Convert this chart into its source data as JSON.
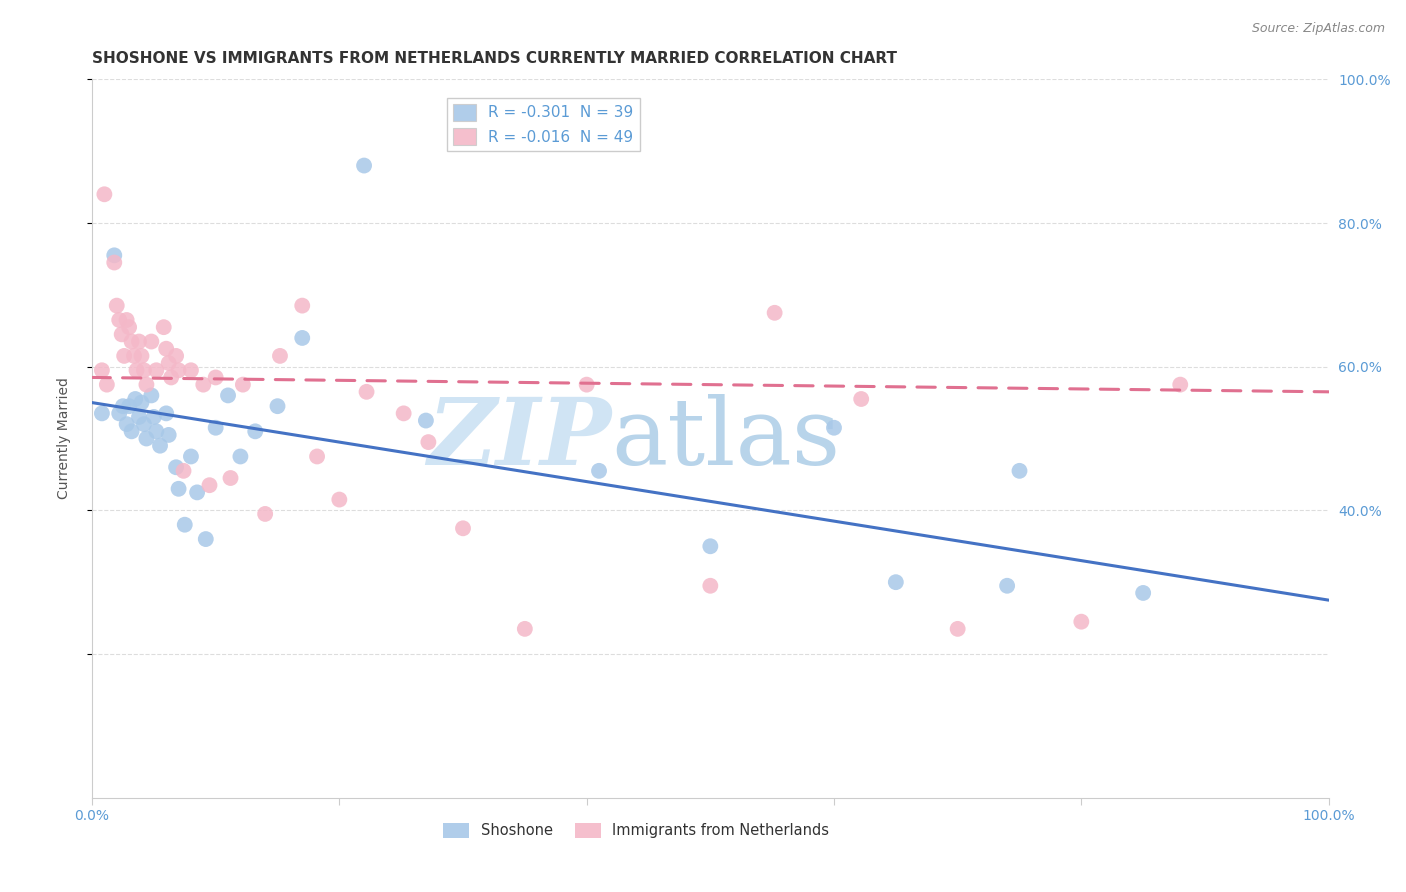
{
  "title": "SHOSHONE VS IMMIGRANTS FROM NETHERLANDS CURRENTLY MARRIED CORRELATION CHART",
  "source": "Source: ZipAtlas.com",
  "ylabel": "Currently Married",
  "xlim": [
    0.0,
    1.0
  ],
  "ylim": [
    0.0,
    1.0
  ],
  "legend_entries": [
    {
      "label_r": "R = ",
      "r_val": "-0.301",
      "label_n": "  N = ",
      "n_val": "39",
      "color": "#a8c8e8"
    },
    {
      "label_r": "R = ",
      "r_val": "-0.016",
      "label_n": "  N = ",
      "n_val": "49",
      "color": "#f4b8c8"
    }
  ],
  "series_blue": {
    "color": "#a8c8e8",
    "line_color": "#4472c4",
    "x": [
      0.008,
      0.018,
      0.022,
      0.025,
      0.028,
      0.03,
      0.032,
      0.035,
      0.038,
      0.04,
      0.042,
      0.044,
      0.048,
      0.05,
      0.052,
      0.055,
      0.06,
      0.062,
      0.068,
      0.07,
      0.075,
      0.08,
      0.085,
      0.092,
      0.1,
      0.11,
      0.12,
      0.132,
      0.15,
      0.17,
      0.22,
      0.27,
      0.41,
      0.5,
      0.6,
      0.65,
      0.74,
      0.75,
      0.85
    ],
    "y": [
      0.535,
      0.755,
      0.535,
      0.545,
      0.52,
      0.545,
      0.51,
      0.555,
      0.53,
      0.55,
      0.52,
      0.5,
      0.56,
      0.53,
      0.51,
      0.49,
      0.535,
      0.505,
      0.46,
      0.43,
      0.38,
      0.475,
      0.425,
      0.36,
      0.515,
      0.56,
      0.475,
      0.51,
      0.545,
      0.64,
      0.88,
      0.525,
      0.455,
      0.35,
      0.515,
      0.3,
      0.295,
      0.455,
      0.285
    ],
    "trendline": {
      "x0": 0.0,
      "y0": 0.55,
      "x1": 1.0,
      "y1": 0.275
    }
  },
  "series_pink": {
    "color": "#f4b8c8",
    "line_color": "#e07090",
    "x": [
      0.008,
      0.01,
      0.012,
      0.018,
      0.02,
      0.022,
      0.024,
      0.026,
      0.028,
      0.03,
      0.032,
      0.034,
      0.036,
      0.038,
      0.04,
      0.042,
      0.044,
      0.048,
      0.052,
      0.058,
      0.06,
      0.062,
      0.064,
      0.068,
      0.07,
      0.074,
      0.08,
      0.09,
      0.095,
      0.1,
      0.112,
      0.122,
      0.14,
      0.152,
      0.17,
      0.182,
      0.2,
      0.222,
      0.252,
      0.272,
      0.3,
      0.35,
      0.4,
      0.5,
      0.552,
      0.622,
      0.7,
      0.8,
      0.88
    ],
    "y": [
      0.595,
      0.84,
      0.575,
      0.745,
      0.685,
      0.665,
      0.645,
      0.615,
      0.665,
      0.655,
      0.635,
      0.615,
      0.595,
      0.635,
      0.615,
      0.595,
      0.575,
      0.635,
      0.595,
      0.655,
      0.625,
      0.605,
      0.585,
      0.615,
      0.595,
      0.455,
      0.595,
      0.575,
      0.435,
      0.585,
      0.445,
      0.575,
      0.395,
      0.615,
      0.685,
      0.475,
      0.415,
      0.565,
      0.535,
      0.495,
      0.375,
      0.235,
      0.575,
      0.295,
      0.675,
      0.555,
      0.235,
      0.245,
      0.575
    ],
    "trendline": {
      "x0": 0.0,
      "y0": 0.585,
      "x1": 1.0,
      "y1": 0.565
    }
  },
  "watermark_zip": "ZIP",
  "watermark_atlas": "atlas",
  "background_color": "#ffffff",
  "grid_color": "#dddddd",
  "title_fontsize": 11,
  "axis_fontsize": 10
}
